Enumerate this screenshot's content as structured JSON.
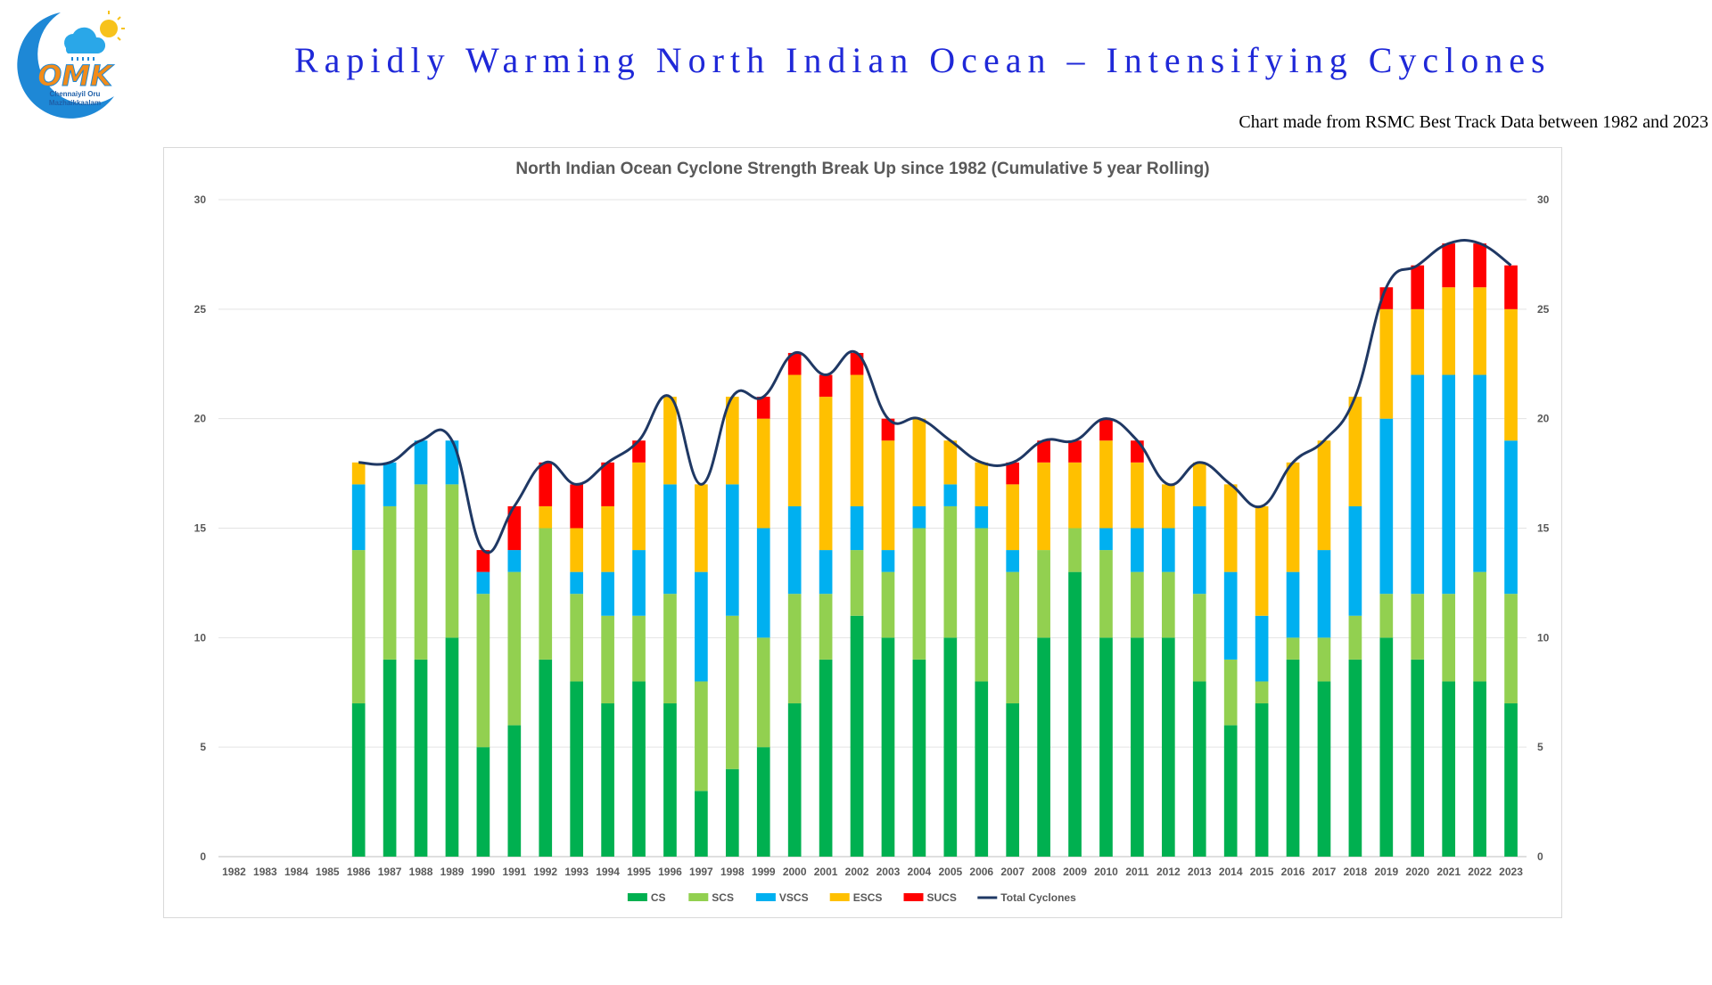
{
  "header": {
    "logo_text_line1": "Chennaiyil Oru",
    "logo_text_line2": "Mazhaikkaalam",
    "logo_letters": "OMK",
    "title": "Rapidly Warming North Indian Ocean – Intensifying Cyclones",
    "subtitle": "Chart made from RSMC Best Track Data between 1982 and 2023"
  },
  "colors": {
    "CS": "#00b050",
    "SCS": "#92d050",
    "VSCS": "#00b0f0",
    "ESCS": "#ffc000",
    "SUCS": "#ff0000",
    "Total Cyclones": "#1f3864"
  },
  "chart_data": {
    "type": "bar",
    "stacked": true,
    "title": "North Indian Ocean Cyclone Strength Break Up since 1982 (Cumulative 5 year Rolling)",
    "xlabel": "",
    "ylabel": "",
    "ylim": [
      0,
      30
    ],
    "yticks": [
      0,
      5,
      10,
      15,
      20,
      25,
      30
    ],
    "secondary_yticks": [
      0,
      5,
      10,
      15,
      20,
      25,
      30
    ],
    "grid": true,
    "legend": "bottom",
    "categories": [
      "1982",
      "1983",
      "1984",
      "1985",
      "1986",
      "1987",
      "1988",
      "1989",
      "1990",
      "1991",
      "1992",
      "1993",
      "1994",
      "1995",
      "1996",
      "1997",
      "1998",
      "1999",
      "2000",
      "2001",
      "2002",
      "2003",
      "2004",
      "2005",
      "2006",
      "2007",
      "2008",
      "2009",
      "2010",
      "2011",
      "2012",
      "2013",
      "2014",
      "2015",
      "2016",
      "2017",
      "2018",
      "2019",
      "2020",
      "2021",
      "2022",
      "2023"
    ],
    "series": [
      {
        "name": "CS",
        "values": [
          0,
          0,
          0,
          0,
          7,
          9,
          9,
          10,
          5,
          6,
          9,
          8,
          7,
          8,
          7,
          3,
          4,
          5,
          7,
          9,
          11,
          10,
          9,
          10,
          8,
          7,
          10,
          13,
          10,
          10,
          10,
          8,
          6,
          7,
          9,
          8,
          9,
          10,
          9,
          8,
          8,
          7
        ]
      },
      {
        "name": "SCS",
        "values": [
          0,
          0,
          0,
          0,
          7,
          7,
          8,
          7,
          7,
          7,
          6,
          4,
          4,
          3,
          5,
          5,
          7,
          5,
          5,
          3,
          3,
          3,
          6,
          6,
          7,
          6,
          4,
          2,
          4,
          3,
          3,
          4,
          3,
          1,
          1,
          2,
          2,
          2,
          3,
          4,
          5,
          5
        ]
      },
      {
        "name": "VSCS",
        "values": [
          0,
          0,
          0,
          0,
          3,
          2,
          2,
          2,
          1,
          1,
          0,
          1,
          2,
          3,
          5,
          5,
          6,
          5,
          4,
          2,
          2,
          1,
          1,
          1,
          1,
          1,
          0,
          0,
          1,
          2,
          2,
          4,
          4,
          3,
          3,
          4,
          5,
          8,
          10,
          10,
          9,
          7
        ]
      },
      {
        "name": "ESCS",
        "values": [
          0,
          0,
          0,
          0,
          1,
          0,
          0,
          0,
          0,
          0,
          1,
          2,
          3,
          4,
          4,
          4,
          4,
          5,
          6,
          7,
          6,
          5,
          4,
          2,
          2,
          3,
          4,
          3,
          4,
          3,
          2,
          2,
          4,
          5,
          5,
          5,
          5,
          5,
          3,
          4,
          4,
          6
        ]
      },
      {
        "name": "SUCS",
        "values": [
          0,
          0,
          0,
          0,
          0,
          0,
          0,
          0,
          1,
          2,
          2,
          2,
          2,
          1,
          0,
          0,
          0,
          1,
          1,
          1,
          1,
          1,
          0,
          0,
          0,
          1,
          1,
          1,
          1,
          1,
          0,
          0,
          0,
          0,
          0,
          0,
          0,
          1,
          2,
          2,
          2,
          2
        ]
      },
      {
        "name": "Total Cyclones",
        "type": "line",
        "values": [
          null,
          null,
          null,
          null,
          18,
          18,
          19,
          19,
          14,
          16,
          18,
          17,
          18,
          19,
          21,
          17,
          21,
          21,
          23,
          22,
          23,
          20,
          20,
          19,
          18,
          18,
          19,
          19,
          20,
          19,
          17,
          18,
          17,
          16,
          18,
          19,
          21,
          26,
          27,
          28,
          28,
          27
        ]
      }
    ]
  }
}
